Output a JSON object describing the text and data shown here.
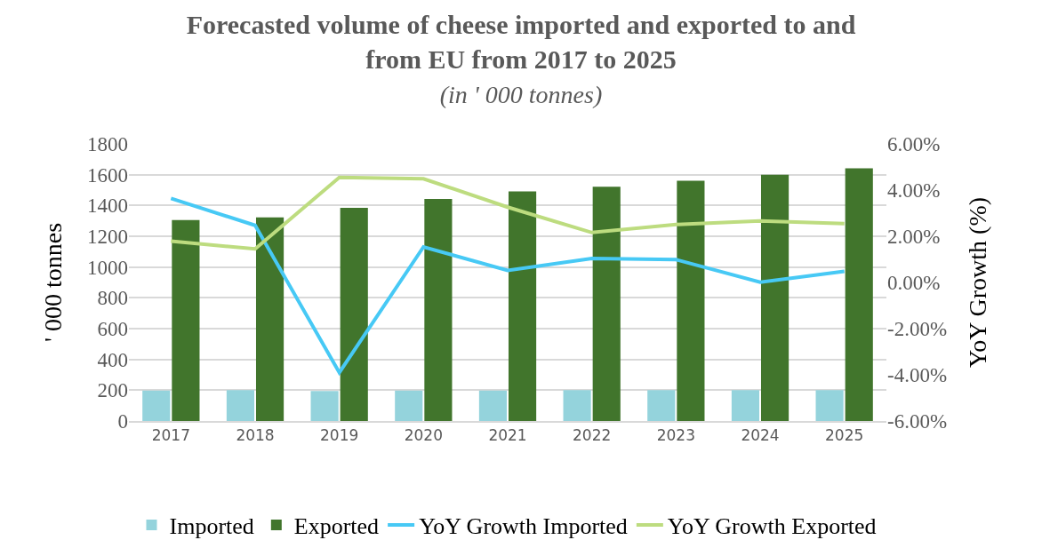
{
  "chart_data": {
    "type": "bar",
    "title": "Forecasted volume of cheese imported and exported to and from EU from 2017 to 2025",
    "subtitle": "(in ' 000 tonnes)",
    "ylabel": "' 000 tonnes",
    "y2label": "YoY Growth (%)",
    "categories": [
      "2017",
      "2018",
      "2019",
      "2020",
      "2021",
      "2022",
      "2023",
      "2024",
      "2025"
    ],
    "series": [
      {
        "name": "Imported",
        "color": "#94d3dc",
        "values": [
          197,
          200,
          195,
          197,
          197,
          200,
          200,
          200,
          200
        ]
      },
      {
        "name": "Exported",
        "color": "#41752c",
        "values": [
          1305,
          1323,
          1384,
          1442,
          1492,
          1522,
          1560,
          1600,
          1642
        ]
      },
      {
        "name": "YoY Growth Imported",
        "type": "line",
        "axis": "y2",
        "color": "#47c9f5",
        "values": [
          3.64,
          2.47,
          -3.9,
          1.54,
          0.52,
          1.04,
          0.99,
          0.01,
          0.48
        ]
      },
      {
        "name": "YoY Growth Exported",
        "type": "line",
        "axis": "y2",
        "color": "#bddc7f",
        "values": [
          1.79,
          1.45,
          4.55,
          4.49,
          3.26,
          2.16,
          2.51,
          2.66,
          2.55
        ]
      }
    ],
    "ylim": [
      0,
      1800
    ],
    "yticks": [
      0,
      200,
      400,
      600,
      800,
      1000,
      1200,
      1400,
      1600,
      1800
    ],
    "y2lim": [
      -6,
      6
    ],
    "y2ticks": [
      {
        "value": -6,
        "label": "-6.00%"
      },
      {
        "value": -4,
        "label": "-4.00%"
      },
      {
        "value": -2,
        "label": "-2.00%"
      },
      {
        "value": 0,
        "label": "0.00%"
      },
      {
        "value": 2,
        "label": "2.00%"
      },
      {
        "value": 4,
        "label": "4.00%"
      },
      {
        "value": 6,
        "label": "6.00%"
      }
    ],
    "grid": "y",
    "legend": "bottom",
    "marker": "none",
    "line_style": "solid"
  }
}
